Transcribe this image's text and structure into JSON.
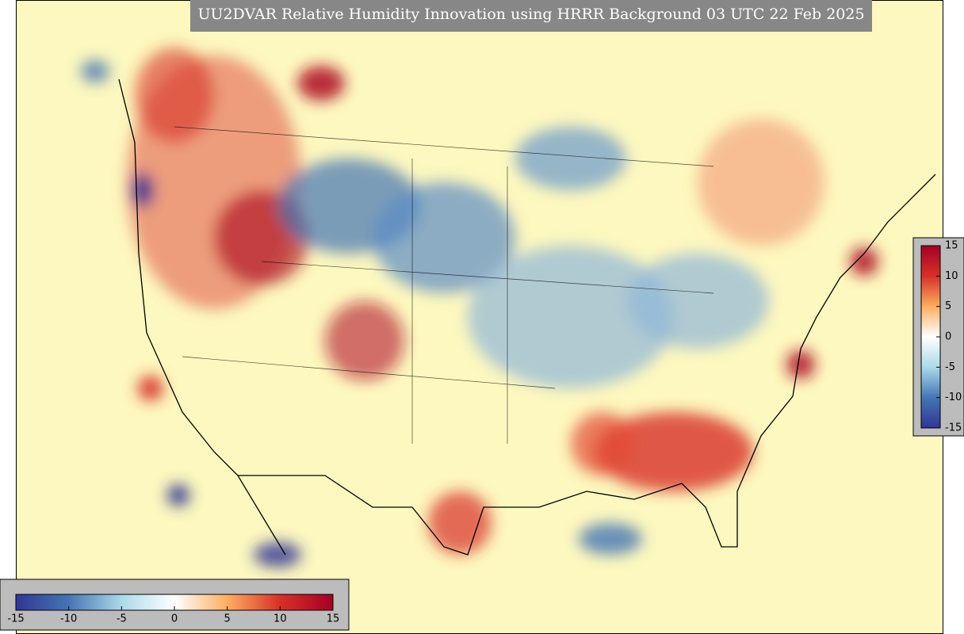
{
  "title": "UU2DVAR Relative Humidity Innovation using HRRR Background 03 UTC 22 Feb 2025",
  "colorbar": {
    "lim": [
      -15,
      15
    ],
    "ticks": [
      -15,
      -10,
      -5,
      0,
      5,
      10,
      15
    ],
    "colors": [
      "#313695",
      "#4575b4",
      "#abd9e9",
      "#ffffff",
      "#fdae61",
      "#d73027",
      "#a50026"
    ]
  }
}
